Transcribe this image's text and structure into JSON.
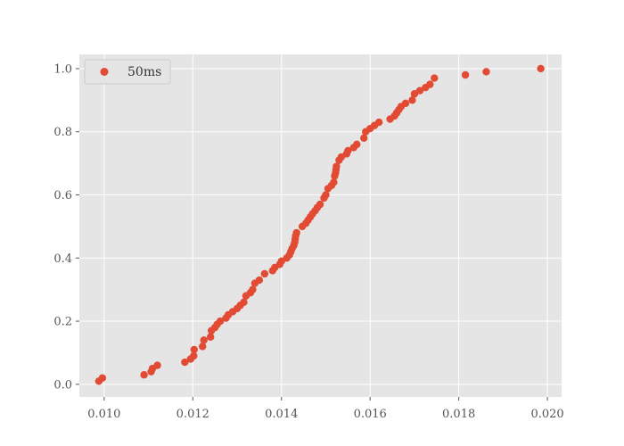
{
  "chart_data": {
    "type": "scatter",
    "title": "",
    "xlabel": "",
    "ylabel": "",
    "xlim": [
      0.00944,
      0.02032
    ],
    "ylim": [
      -0.04,
      1.045
    ],
    "xticks": [
      {
        "value": 0.01,
        "label": "0.010"
      },
      {
        "value": 0.012,
        "label": "0.012"
      },
      {
        "value": 0.014,
        "label": "0.014"
      },
      {
        "value": 0.016,
        "label": "0.016"
      },
      {
        "value": 0.018,
        "label": "0.018"
      },
      {
        "value": 0.02,
        "label": "0.020"
      }
    ],
    "yticks": [
      {
        "value": 0.0,
        "label": "0.0"
      },
      {
        "value": 0.2,
        "label": "0.2"
      },
      {
        "value": 0.4,
        "label": "0.4"
      },
      {
        "value": 0.6,
        "label": "0.6"
      },
      {
        "value": 0.8,
        "label": "0.8"
      },
      {
        "value": 1.0,
        "label": "1.0"
      }
    ],
    "grid": true,
    "background_color": "#e5e5e5",
    "grid_color": "#ffffff",
    "legend": {
      "placement": "top-left"
    },
    "series": [
      {
        "name": "50ms",
        "color": "#e24a33",
        "x": [
          0.00988,
          0.00996,
          0.0109,
          0.01106,
          0.01109,
          0.0112,
          0.01182,
          0.01195,
          0.01202,
          0.01203,
          0.01222,
          0.01225,
          0.0124,
          0.01242,
          0.0125,
          0.01255,
          0.01262,
          0.01275,
          0.0128,
          0.0129,
          0.013,
          0.01307,
          0.01315,
          0.0132,
          0.0133,
          0.01335,
          0.0134,
          0.0135,
          0.01362,
          0.0138,
          0.01385,
          0.01396,
          0.014,
          0.01412,
          0.01418,
          0.01421,
          0.01424,
          0.01428,
          0.0143,
          0.01431,
          0.01432,
          0.01434,
          0.01447,
          0.01455,
          0.0146,
          0.01465,
          0.0147,
          0.01476,
          0.01481,
          0.01487,
          0.01496,
          0.015,
          0.01505,
          0.01513,
          0.01518,
          0.0152,
          0.01522,
          0.01523,
          0.01524,
          0.0153,
          0.01535,
          0.01547,
          0.0155,
          0.01563,
          0.0157,
          0.01586,
          0.0159,
          0.016,
          0.0161,
          0.0162,
          0.01645,
          0.01655,
          0.0166,
          0.01665,
          0.0167,
          0.0168,
          0.01695,
          0.017,
          0.01712,
          0.01725,
          0.01735,
          0.01745,
          0.01815,
          0.01862,
          0.01985
        ],
        "y": [
          0.01,
          0.02,
          0.03,
          0.04,
          0.05,
          0.06,
          0.07,
          0.08,
          0.09,
          0.11,
          0.12,
          0.14,
          0.15,
          0.17,
          0.18,
          0.19,
          0.2,
          0.21,
          0.22,
          0.23,
          0.24,
          0.25,
          0.26,
          0.28,
          0.29,
          0.3,
          0.32,
          0.33,
          0.35,
          0.36,
          0.37,
          0.38,
          0.39,
          0.4,
          0.41,
          0.42,
          0.43,
          0.44,
          0.45,
          0.46,
          0.47,
          0.48,
          0.5,
          0.51,
          0.52,
          0.53,
          0.54,
          0.55,
          0.56,
          0.57,
          0.59,
          0.6,
          0.62,
          0.63,
          0.64,
          0.66,
          0.67,
          0.68,
          0.69,
          0.71,
          0.72,
          0.73,
          0.74,
          0.75,
          0.76,
          0.78,
          0.8,
          0.81,
          0.82,
          0.83,
          0.84,
          0.85,
          0.86,
          0.87,
          0.88,
          0.89,
          0.9,
          0.92,
          0.93,
          0.94,
          0.95,
          0.97,
          0.98,
          0.99,
          1.0
        ]
      }
    ]
  }
}
